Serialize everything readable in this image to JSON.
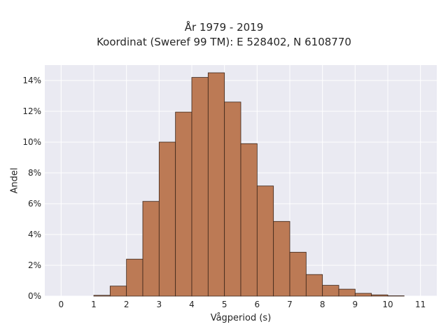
{
  "chart_data": {
    "type": "bar",
    "title": "År 1979 - 2019",
    "subtitle": "Koordinat (Sweref 99 TM): E 528402, N 6108770",
    "xlabel": "Vågperiod (s)",
    "ylabel": "Andel",
    "xlim": [
      -0.5,
      11.5
    ],
    "ylim": [
      0,
      0.15
    ],
    "xticks": [
      "0",
      "1",
      "2",
      "3",
      "4",
      "5",
      "6",
      "7",
      "8",
      "9",
      "10",
      "11"
    ],
    "yticks": [
      "0%",
      "2%",
      "4%",
      "6%",
      "8%",
      "10%",
      "12%",
      "14%"
    ],
    "bin_width": 0.5,
    "bins": [
      {
        "x0": 1.0,
        "value": 0.0005
      },
      {
        "x0": 1.5,
        "value": 0.0065
      },
      {
        "x0": 2.0,
        "value": 0.024
      },
      {
        "x0": 2.5,
        "value": 0.0615
      },
      {
        "x0": 3.0,
        "value": 0.1
      },
      {
        "x0": 3.5,
        "value": 0.1195
      },
      {
        "x0": 4.0,
        "value": 0.142
      },
      {
        "x0": 4.5,
        "value": 0.145
      },
      {
        "x0": 5.0,
        "value": 0.126
      },
      {
        "x0": 5.5,
        "value": 0.099
      },
      {
        "x0": 6.0,
        "value": 0.0715
      },
      {
        "x0": 6.5,
        "value": 0.0485
      },
      {
        "x0": 7.0,
        "value": 0.0285
      },
      {
        "x0": 7.5,
        "value": 0.014
      },
      {
        "x0": 8.0,
        "value": 0.007
      },
      {
        "x0": 8.5,
        "value": 0.0045
      },
      {
        "x0": 9.0,
        "value": 0.0018
      },
      {
        "x0": 9.5,
        "value": 0.0008
      },
      {
        "x0": 10.0,
        "value": 0.0002
      }
    ],
    "grid": true,
    "colors": {
      "bar_fill": "#bc7a55",
      "bar_edge": "#3a2418",
      "plot_background": "#eaeaf2",
      "grid": "#ffffff"
    }
  }
}
